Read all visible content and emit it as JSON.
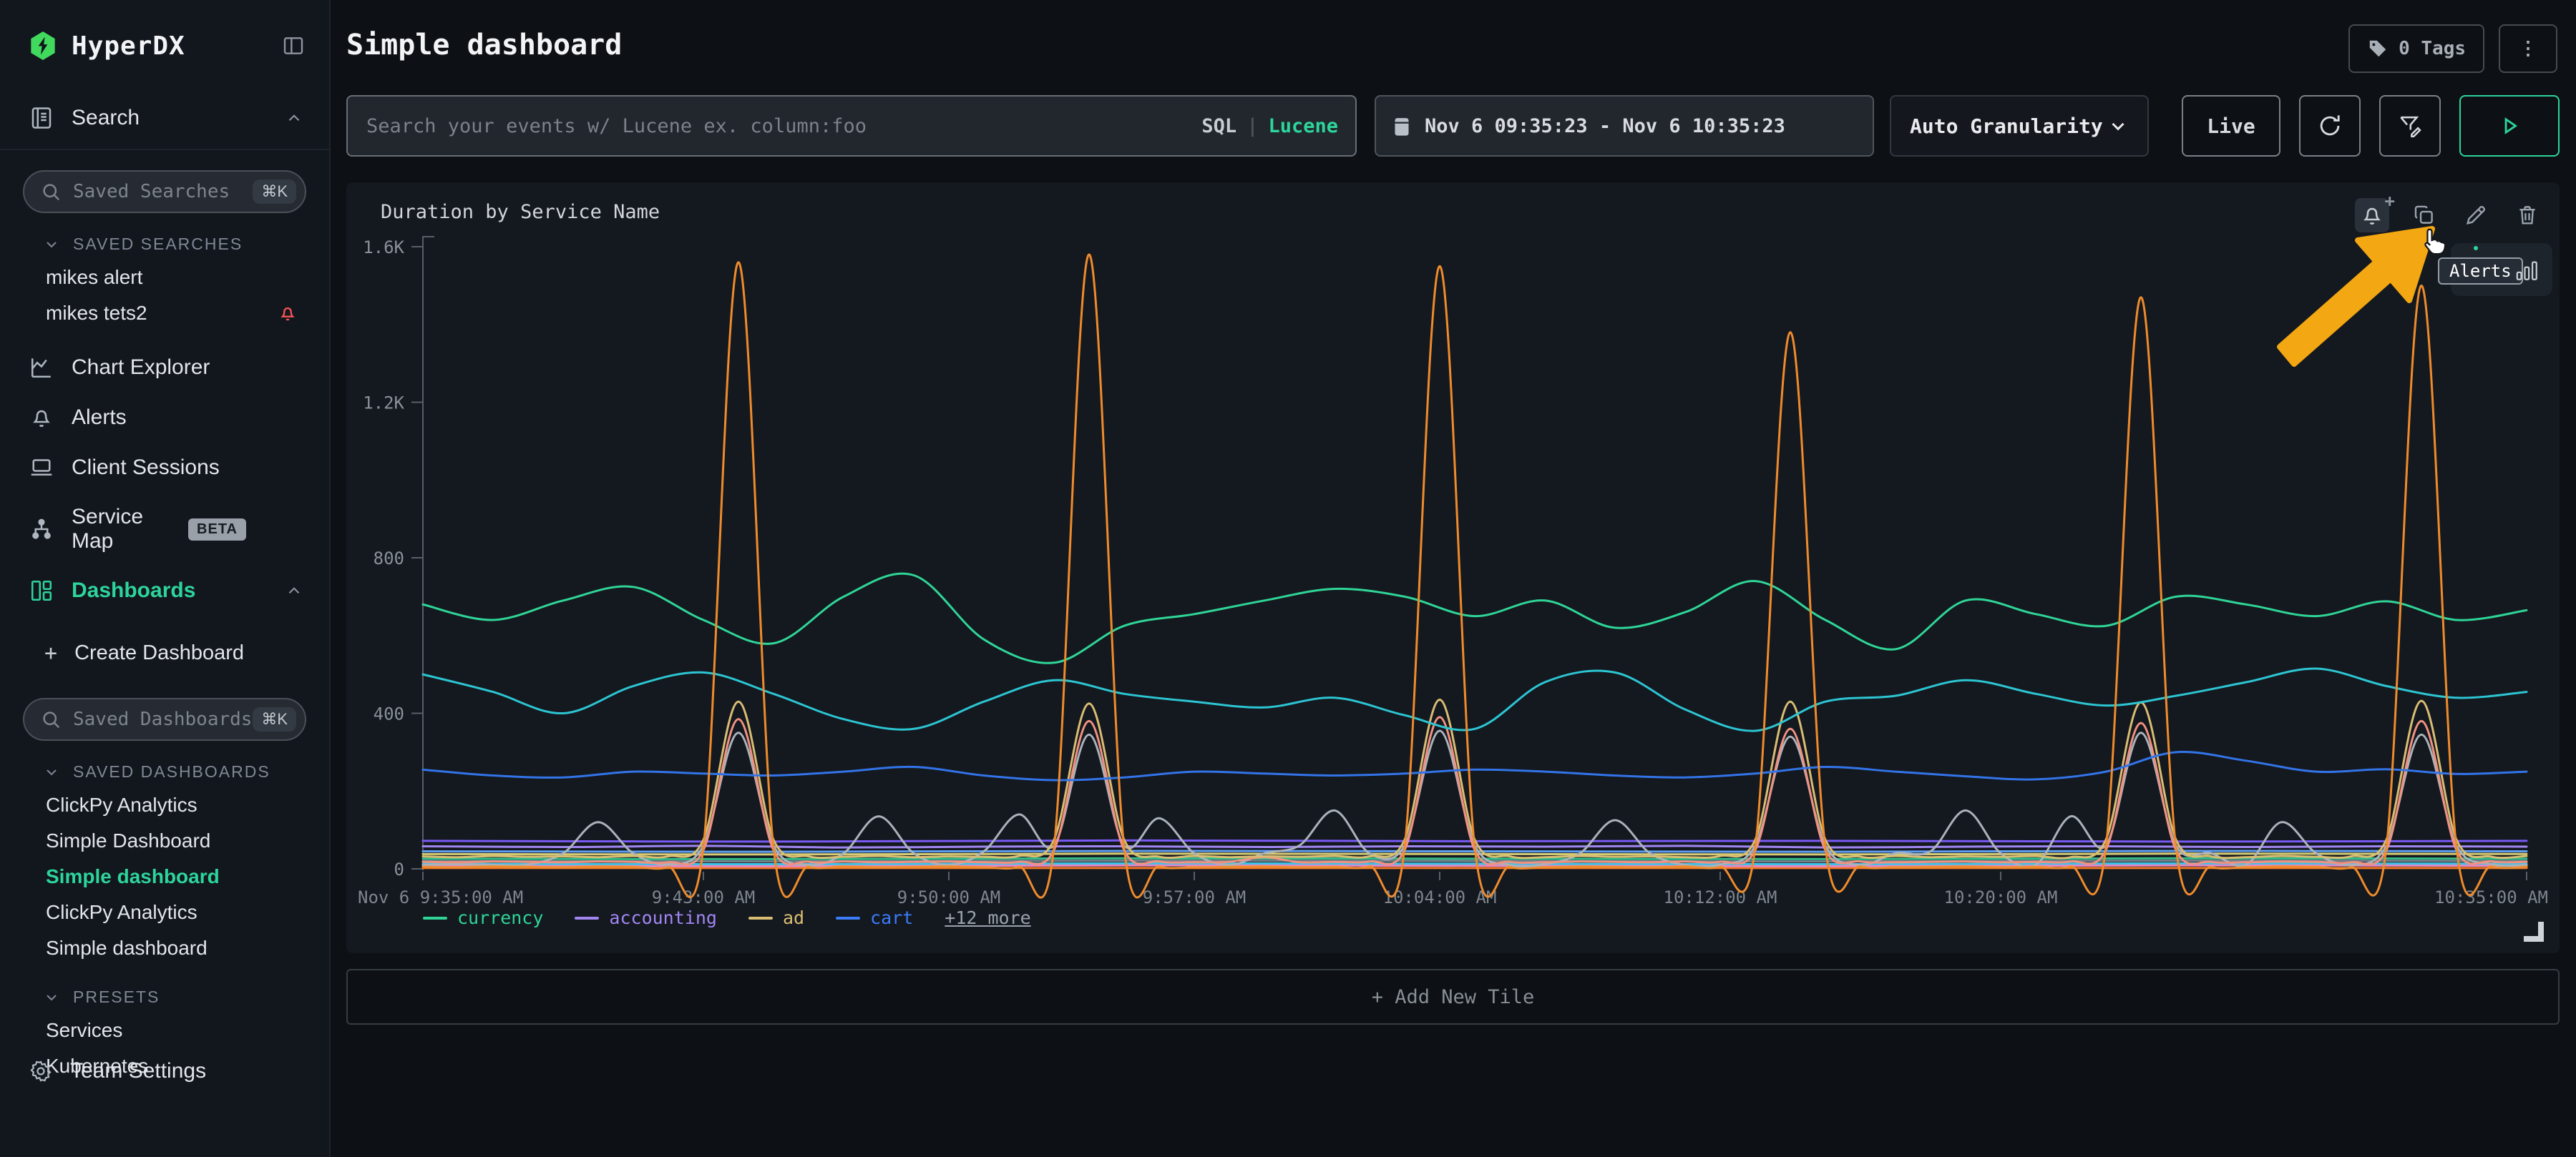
{
  "app": {
    "name": "HyperDX"
  },
  "colors": {
    "accent_green": "#2dd49b",
    "logo_green": "#41d95d",
    "alert_red": "#f25555",
    "annotation_yellow": "#f3a712"
  },
  "icons": {
    "kebab": "⋮",
    "plus": "+",
    "create_plus": "+"
  },
  "sidebar": {
    "search_nav": {
      "label": "Search"
    },
    "saved_searches_input": {
      "placeholder": "Saved Searches",
      "shortcut": "⌘K"
    },
    "saved_searches": {
      "label": "SAVED SEARCHES",
      "items": [
        {
          "label": "mikes alert"
        },
        {
          "label": "mikes tets2",
          "has_alert": true
        }
      ]
    },
    "nav": [
      {
        "label": "Chart Explorer"
      },
      {
        "label": "Alerts"
      },
      {
        "label": "Client Sessions"
      },
      {
        "label": "Service Map",
        "badge": "BETA"
      },
      {
        "label": "Dashboards",
        "active": true
      }
    ],
    "create_dashboard": {
      "label": "Create Dashboard"
    },
    "saved_dashboards_input": {
      "placeholder": "Saved Dashboards",
      "shortcut": "⌘K"
    },
    "saved_dashboards": {
      "label": "SAVED DASHBOARDS",
      "items": [
        "ClickPy Analytics",
        "Simple Dashboard",
        "Simple dashboard",
        "ClickPy Analytics",
        "Simple dashboard"
      ],
      "active_index": 2
    },
    "presets": {
      "label": "PRESETS",
      "items": [
        "Services",
        "Kubernetes"
      ]
    },
    "team_settings": {
      "label": "Team Settings"
    }
  },
  "header": {
    "title": "Simple dashboard",
    "tags_label": "0 Tags"
  },
  "filters": {
    "search": {
      "placeholder": "Search your events w/ Lucene ex. column:foo",
      "mode_sql": "SQL",
      "mode_divider": "|",
      "mode_lucene": "Lucene"
    },
    "time_range": "Nov 6 09:35:23 - Nov 6 10:35:23",
    "granularity": "Auto Granularity",
    "live_label": "Live"
  },
  "tile": {
    "title": "Duration by Service Name",
    "tooltip_label": "Alerts",
    "add_new_tile": "+ Add New Tile",
    "legend": [
      {
        "label": "currency",
        "color": "#2fd596"
      },
      {
        "label": "accounting",
        "color": "#a186f2"
      },
      {
        "label": "ad",
        "color": "#d9bd72"
      },
      {
        "label": "cart",
        "color": "#3b7cf7"
      }
    ],
    "legend_more": "+12 more"
  },
  "chart_data": {
    "type": "line",
    "title": "Duration by Service Name",
    "x_range": [
      "Nov 6 9:35:00 AM",
      "Nov 6 10:35:00 AM"
    ],
    "x_minutes": 60,
    "ylim": [
      0,
      1600
    ],
    "grid": false,
    "legend_position": "bottom",
    "yticks": [
      {
        "v": 0,
        "label": "0"
      },
      {
        "v": 400,
        "label": "400"
      },
      {
        "v": 800,
        "label": "800"
      },
      {
        "v": 1200,
        "label": "1.2K"
      },
      {
        "v": 1600,
        "label": "1.6K"
      }
    ],
    "xticks": [
      {
        "t": 0,
        "label": "Nov 6 9:35:00 AM",
        "align": "left"
      },
      {
        "t": 8,
        "label": "9:43:00 AM"
      },
      {
        "t": 15,
        "label": "9:50:00 AM"
      },
      {
        "t": 22,
        "label": "9:57:00 AM"
      },
      {
        "t": 29,
        "label": "10:04:00 AM"
      },
      {
        "t": 37,
        "label": "10:12:00 AM"
      },
      {
        "t": 45,
        "label": "10:20:00 AM"
      },
      {
        "t": 60,
        "label": "10:35:00 AM",
        "align": "right"
      }
    ],
    "note": "16 services total; only 4 named in legend, 12 unlabeled (+12 more)",
    "series": [
      {
        "name": "",
        "color": "#78828c",
        "step": 10,
        "values": [
          20,
          19,
          21,
          20,
          19,
          21,
          20
        ]
      },
      {
        "name": "",
        "color": "#f07828",
        "step": 10,
        "values": [
          2,
          2,
          2,
          2,
          2,
          2,
          2
        ]
      },
      {
        "name": "",
        "color": "#e887c8",
        "step": 10,
        "values": [
          8,
          7,
          9,
          8,
          7,
          9,
          8
        ]
      },
      {
        "name": "",
        "color": "#3cc3e6",
        "step": 10,
        "values": [
          13,
          12,
          14,
          13,
          12,
          14,
          13
        ]
      },
      {
        "name": "",
        "color": "#31bd8b",
        "step": 10,
        "values": [
          26,
          25,
          27,
          26,
          25,
          27,
          26
        ]
      },
      {
        "name": "",
        "color": "#d6cc74",
        "step": 10,
        "values": [
          38,
          37,
          39,
          38,
          37,
          39,
          38
        ]
      },
      {
        "name": "",
        "color": "#5d9df2",
        "step": 10,
        "values": [
          45,
          44,
          46,
          45,
          44,
          46,
          45
        ]
      },
      {
        "name": "",
        "color": "#7a5af5",
        "step": 10,
        "values": [
          72,
          70,
          73,
          71,
          72,
          70,
          72
        ]
      },
      {
        "name": "accounting",
        "color": "#a186f2",
        "step": 4,
        "values": [
          58,
          56,
          59,
          55,
          57,
          58,
          56,
          58,
          57,
          59,
          55,
          57,
          58,
          56,
          58,
          57
        ]
      },
      {
        "name": "",
        "color": "#aab2ba",
        "step": 1,
        "values": [
          10,
          12,
          10,
          11,
          40,
          120,
          40,
          11,
          60,
          350,
          60,
          10,
          40,
          135,
          40,
          10,
          45,
          140,
          60,
          345,
          60,
          130,
          40,
          10,
          40,
          60,
          150,
          40,
          60,
          355,
          60,
          10,
          12,
          40,
          125,
          40,
          10,
          11,
          60,
          340,
          60,
          10,
          40,
          45,
          150,
          40,
          10,
          135,
          60,
          350,
          60,
          40,
          10,
          120,
          40,
          10,
          60,
          345,
          60,
          12,
          10
        ]
      },
      {
        "name": "",
        "color": "#f29180",
        "step": 1,
        "values": [
          18,
          17,
          19,
          18,
          17,
          19,
          18,
          17,
          48,
          385,
          48,
          18,
          19,
          17,
          18,
          19,
          17,
          18,
          48,
          380,
          48,
          19,
          17,
          18,
          30,
          17,
          18,
          19,
          48,
          390,
          48,
          18,
          17,
          19,
          18,
          17,
          19,
          18,
          48,
          360,
          48,
          19,
          17,
          18,
          19,
          17,
          18,
          19,
          48,
          375,
          48,
          18,
          17,
          19,
          18,
          17,
          48,
          380,
          48,
          19,
          18
        ]
      },
      {
        "name": "ad",
        "color": "#d9bd72",
        "step": 1,
        "values": [
          32,
          30,
          33,
          31,
          32,
          30,
          33,
          32,
          75,
          430,
          75,
          32,
          31,
          33,
          30,
          32,
          31,
          33,
          75,
          425,
          75,
          31,
          33,
          30,
          32,
          31,
          33,
          32,
          75,
          435,
          75,
          32,
          30,
          33,
          31,
          32,
          30,
          33,
          75,
          430,
          75,
          31,
          33,
          30,
          32,
          31,
          33,
          30,
          75,
          428,
          75,
          32,
          30,
          33,
          31,
          32,
          75,
          432,
          75,
          31,
          33
        ]
      },
      {
        "name": "cart",
        "color": "#3274e8",
        "step": 2,
        "values": [
          255,
          240,
          235,
          250,
          245,
          240,
          250,
          262,
          240,
          228,
          235,
          250,
          245,
          240,
          245,
          255,
          250,
          240,
          235,
          245,
          262,
          250,
          238,
          230,
          250,
          300,
          278,
          250,
          256,
          244,
          250
        ]
      },
      {
        "name": "",
        "color": "#2cc5d2",
        "step": 2,
        "values": [
          500,
          455,
          400,
          470,
          505,
          450,
          385,
          360,
          430,
          485,
          450,
          430,
          415,
          440,
          395,
          360,
          480,
          505,
          410,
          355,
          430,
          445,
          485,
          450,
          420,
          445,
          480,
          515,
          470,
          440,
          455
        ]
      },
      {
        "name": "currency",
        "color": "#2fd596",
        "step": 2,
        "values": [
          680,
          640,
          690,
          725,
          640,
          580,
          700,
          755,
          590,
          530,
          625,
          655,
          690,
          720,
          700,
          650,
          690,
          620,
          660,
          740,
          640,
          565,
          690,
          655,
          625,
          700,
          680,
          650,
          688,
          640,
          665
        ]
      },
      {
        "name": "",
        "color": "#ee8b2c",
        "step": 1,
        "values": [
          5,
          4,
          6,
          5,
          4,
          6,
          5,
          4,
          55,
          1560,
          55,
          5,
          6,
          4,
          5,
          6,
          4,
          5,
          55,
          1580,
          55,
          6,
          4,
          5,
          6,
          4,
          5,
          6,
          55,
          1550,
          55,
          5,
          4,
          6,
          5,
          4,
          6,
          5,
          55,
          1380,
          55,
          6,
          4,
          5,
          6,
          4,
          5,
          6,
          55,
          1470,
          55,
          5,
          4,
          6,
          5,
          4,
          55,
          1500,
          55,
          6,
          5
        ]
      }
    ]
  }
}
